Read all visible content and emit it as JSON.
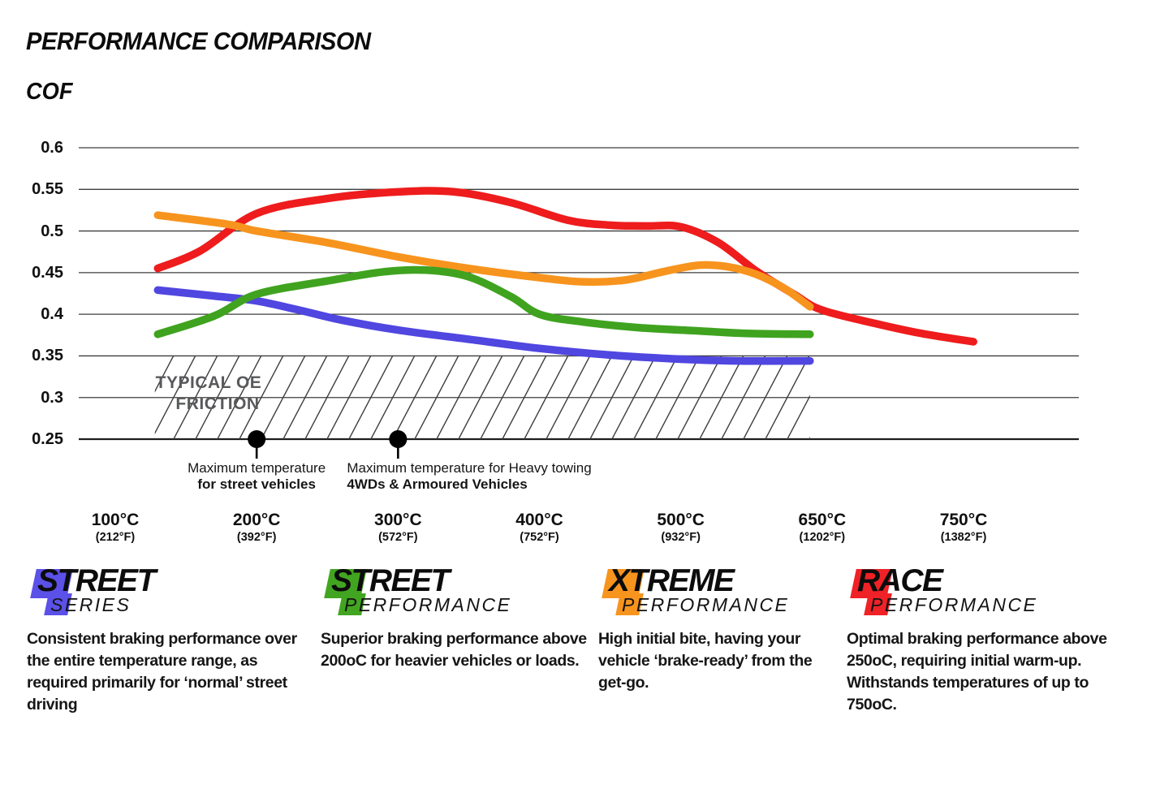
{
  "header": {
    "title": "PERFORMANCE COMPARISON",
    "y_axis_title": "COF"
  },
  "chart_data": {
    "type": "line",
    "title": "PERFORMANCE COMPARISON",
    "ylabel": "COF",
    "ylim": [
      0.25,
      0.6
    ],
    "grid": true,
    "legend_position": "below",
    "yticks": [
      0.6,
      0.55,
      0.5,
      0.45,
      0.4,
      0.35,
      0.3,
      0.25
    ],
    "ytick_labels": [
      "0.6",
      "0.55",
      "0.5",
      "0.45",
      "0.4",
      "0.35",
      "0.3",
      "0.25"
    ],
    "x_categories": [
      {
        "temp": 100,
        "label_c": "100°C",
        "label_f": "(212°F)"
      },
      {
        "temp": 200,
        "label_c": "200°C",
        "label_f": "(392°F)"
      },
      {
        "temp": 300,
        "label_c": "300°C",
        "label_f": "(572°F)"
      },
      {
        "temp": 400,
        "label_c": "400°C",
        "label_f": "(752°F)"
      },
      {
        "temp": 500,
        "label_c": "500°C",
        "label_f": "(932°F)"
      },
      {
        "temp": 650,
        "label_c": "650°C",
        "label_f": "(1202°F)"
      },
      {
        "temp": 750,
        "label_c": "750°C",
        "label_f": "(1382°F)"
      }
    ],
    "series": [
      {
        "name": "Street Series",
        "color": "#5046e0",
        "points": [
          [
            130,
            0.429
          ],
          [
            170,
            0.422
          ],
          [
            200,
            0.416
          ],
          [
            230,
            0.405
          ],
          [
            260,
            0.393
          ],
          [
            300,
            0.381
          ],
          [
            350,
            0.37
          ],
          [
            400,
            0.359
          ],
          [
            450,
            0.351
          ],
          [
            500,
            0.346
          ],
          [
            560,
            0.344
          ],
          [
            637,
            0.344
          ]
        ]
      },
      {
        "name": "Street Performance",
        "color": "#3fa31f",
        "points": [
          [
            130,
            0.376
          ],
          [
            170,
            0.398
          ],
          [
            200,
            0.424
          ],
          [
            250,
            0.44
          ],
          [
            290,
            0.451
          ],
          [
            320,
            0.453
          ],
          [
            350,
            0.445
          ],
          [
            380,
            0.421
          ],
          [
            400,
            0.4
          ],
          [
            430,
            0.391
          ],
          [
            470,
            0.384
          ],
          [
            520,
            0.38
          ],
          [
            570,
            0.377
          ],
          [
            637,
            0.376
          ]
        ]
      },
      {
        "name": "Xtreme Performance",
        "color": "#f7941e",
        "points": [
          [
            130,
            0.519
          ],
          [
            180,
            0.508
          ],
          [
            200,
            0.5
          ],
          [
            250,
            0.486
          ],
          [
            300,
            0.469
          ],
          [
            350,
            0.455
          ],
          [
            400,
            0.444
          ],
          [
            430,
            0.439
          ],
          [
            460,
            0.441
          ],
          [
            490,
            0.452
          ],
          [
            520,
            0.459
          ],
          [
            550,
            0.457
          ],
          [
            580,
            0.448
          ],
          [
            610,
            0.431
          ],
          [
            637,
            0.409
          ]
        ]
      },
      {
        "name": "Race Performance",
        "color": "#ee1c1c",
        "points": [
          [
            130,
            0.455
          ],
          [
            160,
            0.476
          ],
          [
            200,
            0.521
          ],
          [
            250,
            0.539
          ],
          [
            300,
            0.547
          ],
          [
            340,
            0.547
          ],
          [
            380,
            0.534
          ],
          [
            420,
            0.513
          ],
          [
            450,
            0.507
          ],
          [
            475,
            0.506
          ],
          [
            500,
            0.505
          ],
          [
            540,
            0.486
          ],
          [
            580,
            0.452
          ],
          [
            620,
            0.424
          ],
          [
            650,
            0.405
          ],
          [
            690,
            0.388
          ],
          [
            720,
            0.377
          ],
          [
            757,
            0.367
          ]
        ]
      }
    ],
    "oe_band": {
      "label": [
        "TYPICAL OE",
        "FRICTION"
      ],
      "cof_range": [
        0.25,
        0.35
      ],
      "temp_range": [
        128,
        637
      ],
      "text_color": "#58595b"
    },
    "annotations": [
      {
        "temp": 200,
        "cof": 0.25,
        "align": "center",
        "lines": [
          "Maximum temperature",
          "for street vehicles"
        ]
      },
      {
        "temp": 300,
        "cof": 0.25,
        "align": "left",
        "lines": [
          "Maximum temperature for Heavy towing",
          "4WDs & Armoured Vehicles"
        ]
      }
    ]
  },
  "legend": [
    {
      "id": "street-series",
      "color": "#5b51e8",
      "title_line1": "STREET",
      "title_line2": "SERIES",
      "description": "Consistent braking performance over the entire temperature range, as required primarily for ‘normal’ street driving"
    },
    {
      "id": "street-performance",
      "color": "#42a521",
      "title_line1": "STREET",
      "title_line2": "PERFORMANCE",
      "description": "Superior braking performance above 200oC for heavier vehicles or loads."
    },
    {
      "id": "xtreme-performance",
      "color": "#f7941e",
      "title_line1": "XTREME",
      "title_line2": "PERFORMANCE",
      "description": "High initial bite, having your vehicle ‘brake-ready’ from the get-go."
    },
    {
      "id": "race-performance",
      "color": "#ee2227",
      "title_line1": "RACE",
      "title_line2": "PERFORMANCE",
      "description": "Optimal braking performance above 250oC, requiring initial warm-up. Withstands temperatures of up to 750oC."
    }
  ]
}
